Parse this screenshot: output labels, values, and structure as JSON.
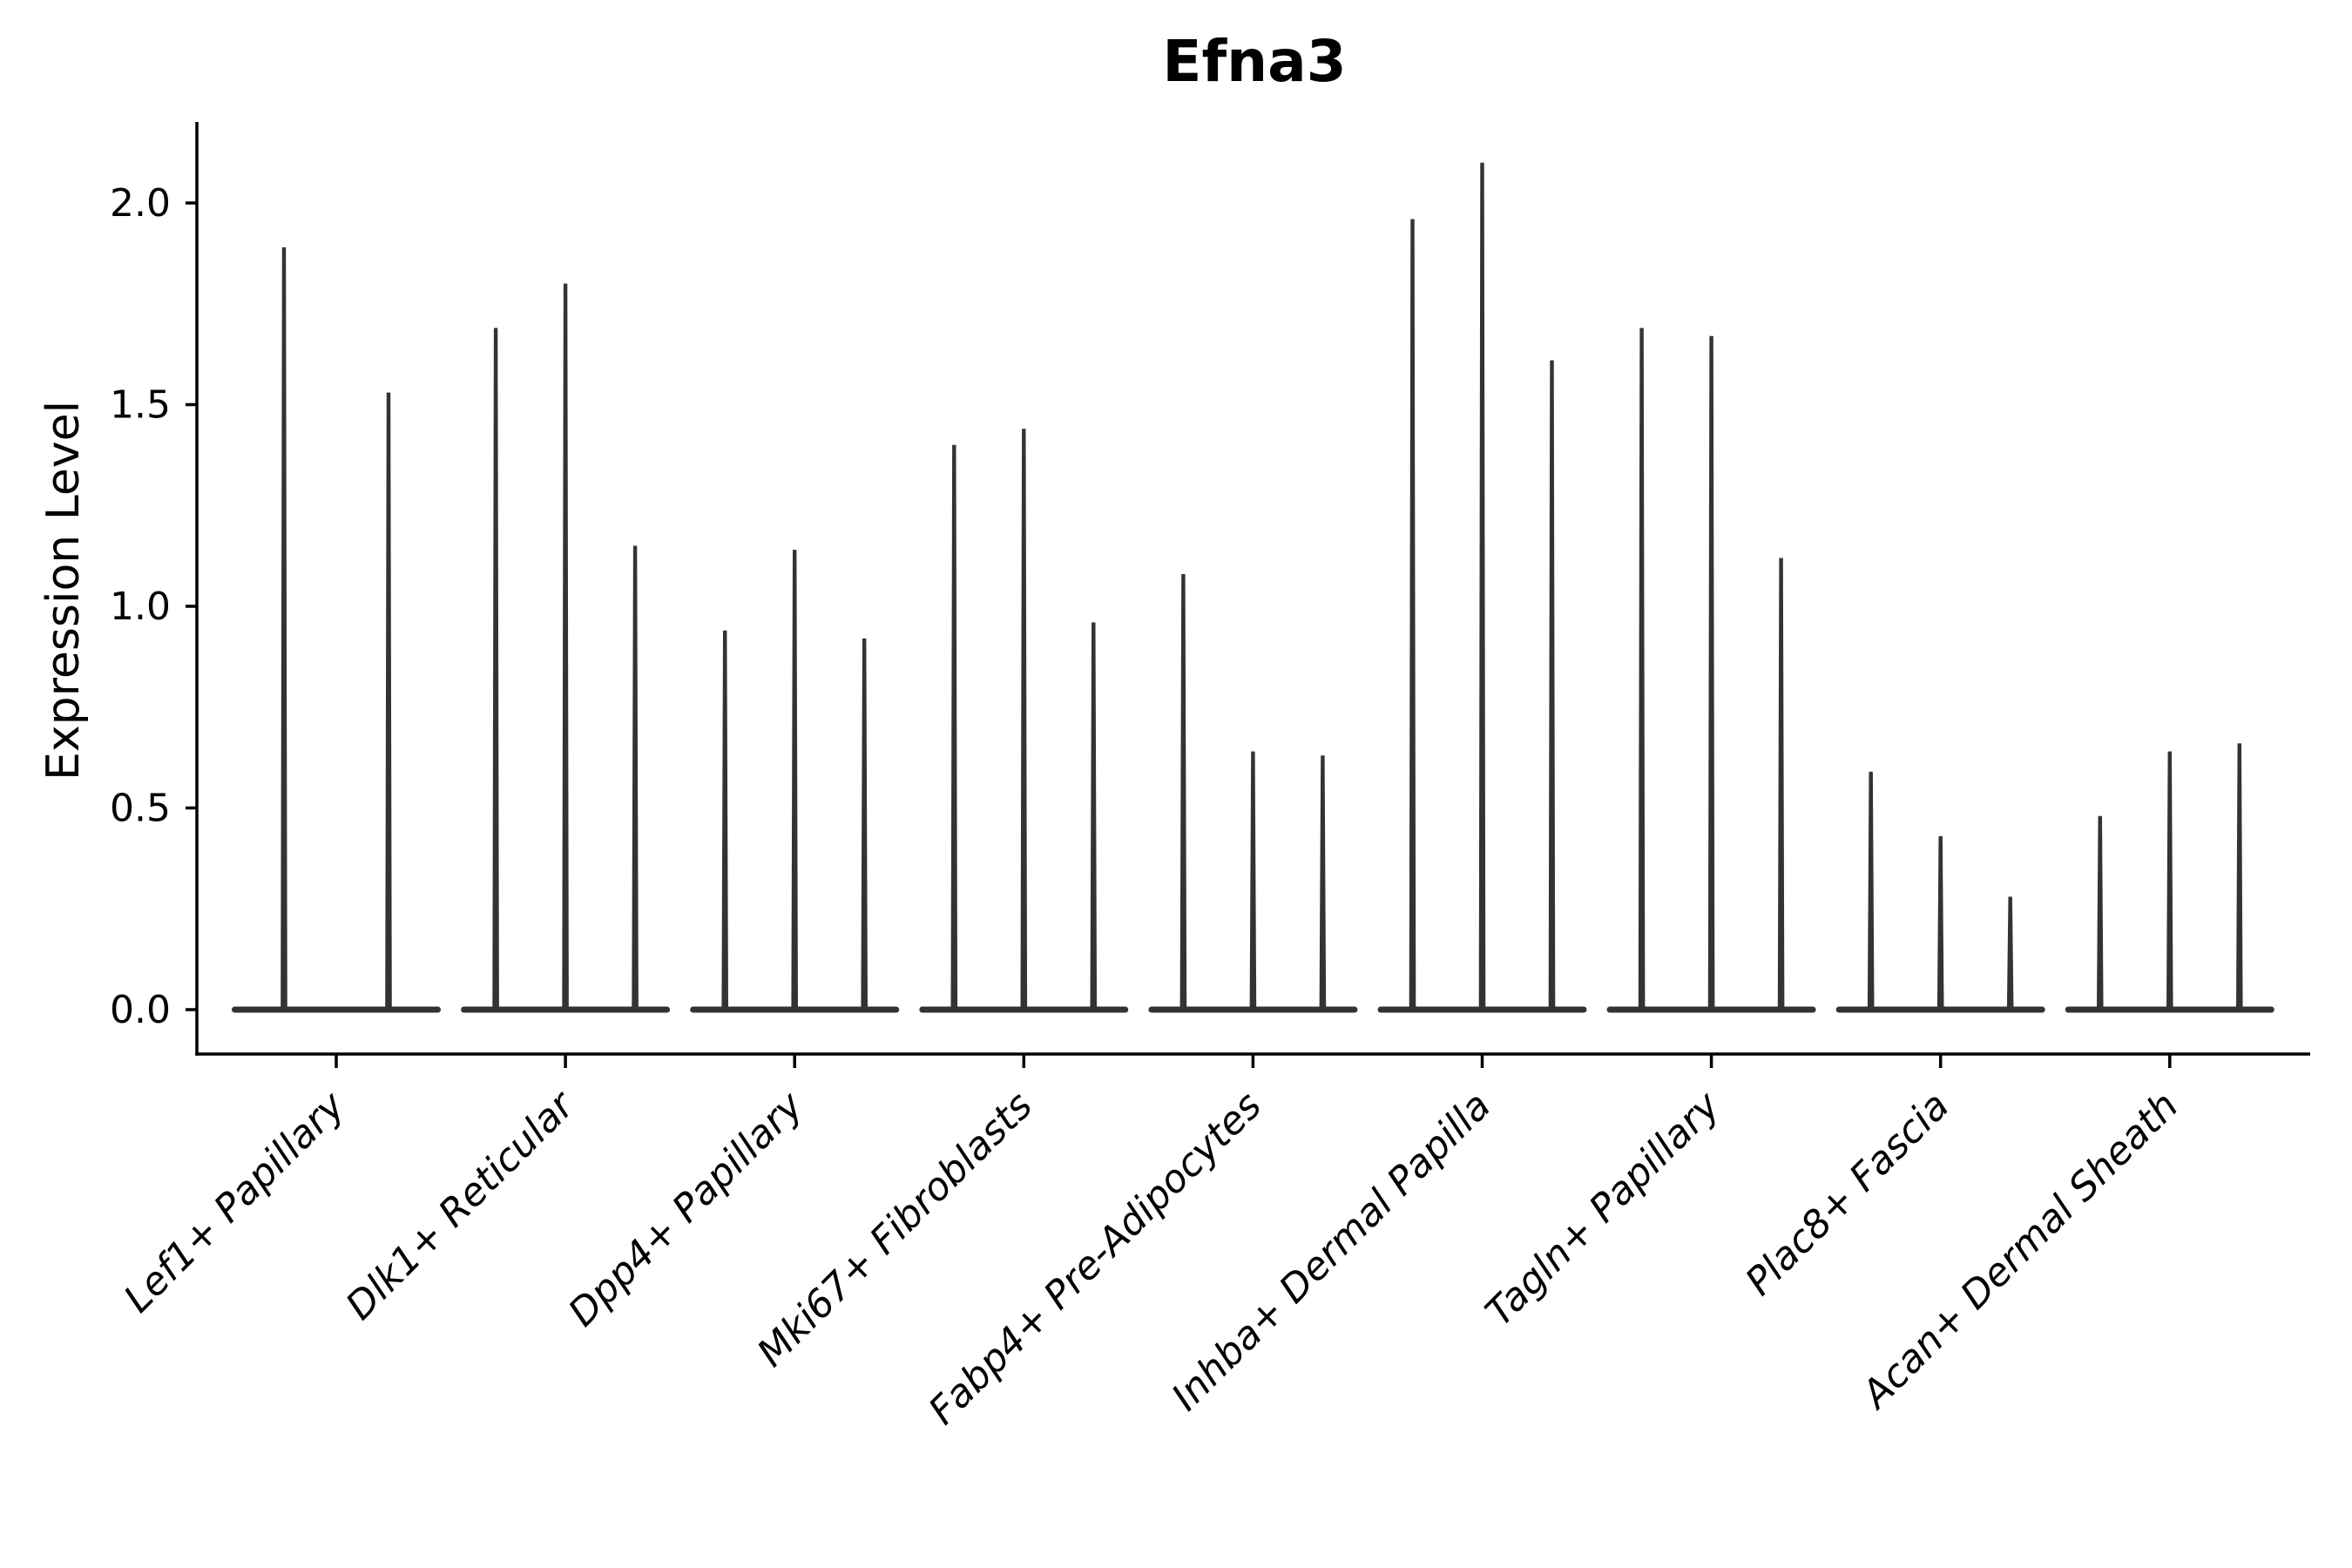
{
  "chart_data": {
    "type": "violin",
    "title": "Efna3",
    "ylabel": "Expression Level",
    "xlabel": "",
    "categories": [
      "Lef1+ Papillary",
      "Dlk1+ Reticular",
      "Dpp4+ Papillary",
      "Mki67+ Fibroblasts",
      "Fabp4+ Pre-Adipocytes",
      "Inhba+ Dermal Papilla",
      "Tagln+ Papillary",
      "Plac8+ Fascia",
      "Acan+ Dermal Sheath"
    ],
    "violin_maxima": [
      [
        1.89,
        1.53
      ],
      [
        1.69,
        1.8,
        1.15
      ],
      [
        0.94,
        1.14,
        0.92
      ],
      [
        1.4,
        1.44,
        0.96
      ],
      [
        1.08,
        0.64,
        0.63
      ],
      [
        1.96,
        2.1,
        1.61
      ],
      [
        1.69,
        1.67,
        1.12
      ],
      [
        0.59,
        0.43,
        0.28
      ],
      [
        0.48,
        0.64,
        0.66
      ]
    ],
    "violin_baseline_value": 0.0,
    "yticks": [
      0.0,
      0.5,
      1.0,
      1.5,
      2.0
    ],
    "ylim": [
      -0.11,
      2.21
    ],
    "grid": false,
    "legend": false,
    "xtick_rotation_deg": 45,
    "style": {
      "violin_color": "#333333",
      "axis_color": "#000000",
      "text_color": "#000000",
      "background": "#ffffff"
    }
  }
}
